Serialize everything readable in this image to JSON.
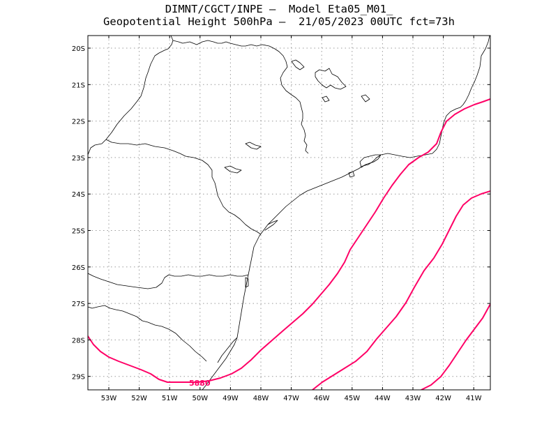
{
  "title": {
    "line1": "DIMNT/CGCT/INPE –  Model Eta05_M01_",
    "line2": "Geopotential Height 500hPa –  21/05/2023 00UTC fct=73h"
  },
  "colors": {
    "contour": "#ff0066",
    "coast": "#000000",
    "grid": "#9a9a9a",
    "frame": "#000000"
  },
  "axes": {
    "lon_labels": [
      "53W",
      "52W",
      "51W",
      "50W",
      "49W",
      "48W",
      "47W",
      "46W",
      "45W",
      "44W",
      "43W",
      "42W",
      "41W"
    ],
    "lat_labels": [
      "20S",
      "21S",
      "22S",
      "23S",
      "24S",
      "25S",
      "26S",
      "27S",
      "28S",
      "29S"
    ]
  },
  "contour_label": "5880",
  "contours": [
    {
      "level": "5880",
      "labeled": true
    },
    {
      "level": "",
      "labeled": false
    },
    {
      "level": "",
      "labeled": false
    },
    {
      "level": "",
      "labeled": false
    }
  ]
}
